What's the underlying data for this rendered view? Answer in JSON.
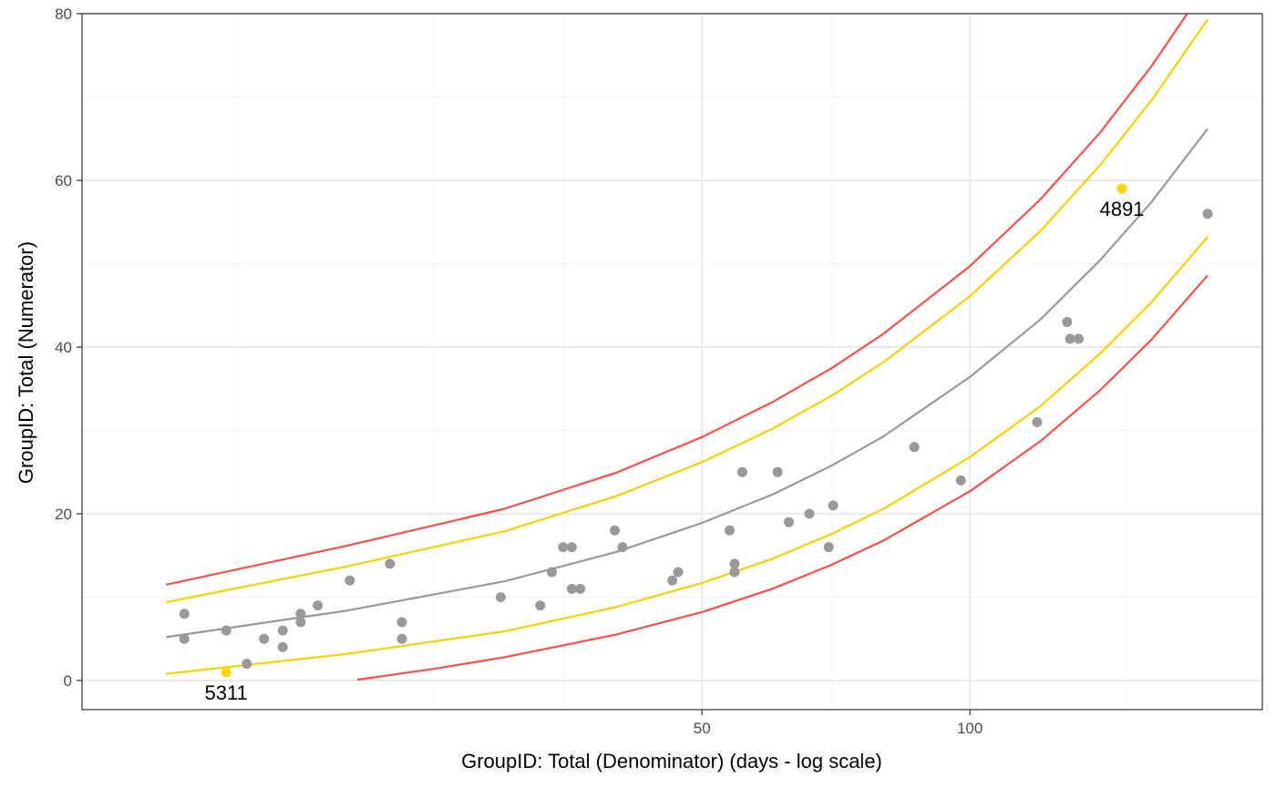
{
  "chart_data": {
    "type": "scatter",
    "title": "",
    "xlabel": "GroupID:  Total (Denominator) (days - log scale)",
    "ylabel": "GroupID:  Total (Numerator)",
    "x_scale": "log",
    "xlim": [
      11.5,
      185
    ],
    "ylim": [
      -3.5,
      80
    ],
    "x_ticks": [
      {
        "value": 50,
        "label": "50"
      },
      {
        "value": 100,
        "label": "100"
      }
    ],
    "y_ticks": [
      {
        "value": 0,
        "label": "0"
      },
      {
        "value": 20,
        "label": "20"
      },
      {
        "value": 40,
        "label": "40"
      },
      {
        "value": 60,
        "label": "60"
      },
      {
        "value": 80,
        "label": "80"
      }
    ],
    "x_minor_grid": [
      15,
      25,
      35,
      70,
      150
    ],
    "y_minor_grid": [
      10,
      30,
      50,
      70
    ],
    "grid": true,
    "colors": {
      "points": "#999999",
      "highlight": "#FFD700",
      "center_line": "#999999",
      "inner_limits": "#F5D100",
      "outer_limits": "#F5504B",
      "grid_major": "#ebebeb",
      "grid_minor": "#f2f2f2",
      "border": "#333333"
    },
    "points": [
      {
        "x": 13.1,
        "y": 8
      },
      {
        "x": 13.1,
        "y": 5
      },
      {
        "x": 14.6,
        "y": 6
      },
      {
        "x": 15.4,
        "y": 2
      },
      {
        "x": 16.1,
        "y": 5
      },
      {
        "x": 16.9,
        "y": 6
      },
      {
        "x": 16.9,
        "y": 4
      },
      {
        "x": 17.7,
        "y": 8
      },
      {
        "x": 17.7,
        "y": 7
      },
      {
        "x": 18.5,
        "y": 9
      },
      {
        "x": 20.1,
        "y": 12
      },
      {
        "x": 22.3,
        "y": 14
      },
      {
        "x": 23.0,
        "y": 7
      },
      {
        "x": 23.0,
        "y": 5
      },
      {
        "x": 29.7,
        "y": 10
      },
      {
        "x": 32.9,
        "y": 9
      },
      {
        "x": 33.9,
        "y": 13
      },
      {
        "x": 34.9,
        "y": 16
      },
      {
        "x": 35.7,
        "y": 16
      },
      {
        "x": 35.7,
        "y": 11
      },
      {
        "x": 36.5,
        "y": 11
      },
      {
        "x": 39.9,
        "y": 18
      },
      {
        "x": 40.7,
        "y": 16
      },
      {
        "x": 46.3,
        "y": 12
      },
      {
        "x": 47.0,
        "y": 13
      },
      {
        "x": 53.7,
        "y": 18
      },
      {
        "x": 54.4,
        "y": 14
      },
      {
        "x": 54.4,
        "y": 13
      },
      {
        "x": 55.5,
        "y": 25
      },
      {
        "x": 60.8,
        "y": 25
      },
      {
        "x": 62.6,
        "y": 19
      },
      {
        "x": 66.0,
        "y": 20
      },
      {
        "x": 69.4,
        "y": 16
      },
      {
        "x": 70.2,
        "y": 21
      },
      {
        "x": 86.6,
        "y": 28
      },
      {
        "x": 97.7,
        "y": 24
      },
      {
        "x": 119.0,
        "y": 31
      },
      {
        "x": 128.6,
        "y": 43
      },
      {
        "x": 129.6,
        "y": 41
      },
      {
        "x": 132.5,
        "y": 41
      },
      {
        "x": 185.0,
        "y": 56
      }
    ],
    "highlighted_points": [
      {
        "x": 14.6,
        "y": 1,
        "label": "5311"
      },
      {
        "x": 148.2,
        "y": 59,
        "label": "4891"
      }
    ],
    "series": [
      {
        "role": "center",
        "x": [
          12.5,
          20,
          30,
          40,
          50,
          60,
          70,
          80,
          100,
          120,
          140,
          160,
          185
        ],
        "y": [
          5.2,
          8.4,
          11.9,
          15.4,
          18.9,
          22.3,
          25.8,
          29.3,
          36.4,
          43.3,
          50.4,
          57.4,
          66.2
        ]
      },
      {
        "role": "inner-upper",
        "x": [
          12.5,
          20,
          30,
          40,
          50,
          60,
          70,
          80,
          100,
          120,
          140,
          160,
          185
        ],
        "y": [
          9.4,
          13.7,
          17.9,
          22.1,
          26.2,
          30.2,
          34.2,
          38.2,
          46.1,
          53.9,
          61.8,
          69.6,
          79.3
        ]
      },
      {
        "role": "inner-lower",
        "x": [
          12.5,
          20,
          30,
          40,
          50,
          60,
          70,
          80,
          100,
          120,
          140,
          160,
          185
        ],
        "y": [
          0.8,
          3.2,
          5.9,
          8.8,
          11.7,
          14.6,
          17.6,
          20.6,
          26.8,
          32.9,
          39.2,
          45.4,
          53.2
        ]
      },
      {
        "role": "outer-upper",
        "x": [
          12.5,
          20,
          30,
          40,
          50,
          60,
          70,
          80,
          100,
          120,
          140,
          160,
          185
        ],
        "y": [
          11.5,
          16.2,
          20.6,
          24.9,
          29.2,
          33.4,
          37.5,
          41.6,
          49.7,
          57.7,
          65.7,
          73.7,
          83.6
        ]
      },
      {
        "role": "outer-lower",
        "x": [
          20.5,
          25,
          30,
          40,
          50,
          60,
          70,
          80,
          100,
          120,
          140,
          160,
          185
        ],
        "y": [
          0.1,
          1.4,
          2.8,
          5.5,
          8.2,
          11.0,
          13.9,
          16.8,
          22.7,
          28.7,
          34.8,
          40.9,
          48.6
        ]
      }
    ]
  }
}
